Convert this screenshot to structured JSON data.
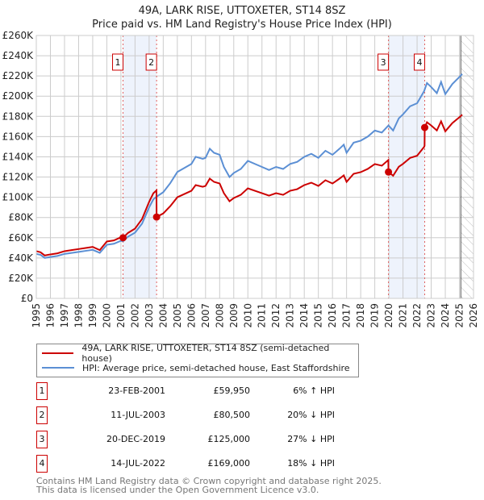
{
  "title": "49A, LARK RISE, UTTOXETER, ST14 8SZ",
  "subtitle": "Price paid vs. HM Land Registry's House Price Index (HPI)",
  "legend": {
    "property": "49A, LARK RISE, UTTOXETER, ST14 8SZ (semi-detached house)",
    "hpi": "HPI: Average price, semi-detached house, East Staffordshire"
  },
  "transactions": [
    {
      "num": "1",
      "date": "23-FEB-2001",
      "price": "£59,950",
      "hpi": "6% ↑ HPI"
    },
    {
      "num": "2",
      "date": "11-JUL-2003",
      "price": "£80,500",
      "hpi": "20% ↓ HPI"
    },
    {
      "num": "3",
      "date": "20-DEC-2019",
      "price": "£125,000",
      "hpi": "27% ↓ HPI"
    },
    {
      "num": "4",
      "date": "14-JUL-2022",
      "price": "£169,000",
      "hpi": "18% ↓ HPI"
    }
  ],
  "footer": [
    "Contains HM Land Registry data © Crown copyright and database right 2025.",
    "This data is licensed under the Open Government Licence v3.0."
  ],
  "colors": {
    "property": "#cc0000",
    "hpi": "#5b8fd4",
    "band": "#eef3fc"
  },
  "chart_data": {
    "type": "line",
    "xlim": [
      1995,
      2026
    ],
    "ylim": [
      0,
      260000
    ],
    "yticks": [
      "£0",
      "£20K",
      "£40K",
      "£60K",
      "£80K",
      "£100K",
      "£120K",
      "£140K",
      "£160K",
      "£180K",
      "£200K",
      "£220K",
      "£240K",
      "£260K"
    ],
    "xticks": [
      "1995",
      "1996",
      "1997",
      "1998",
      "1999",
      "2000",
      "2001",
      "2002",
      "2003",
      "2004",
      "2005",
      "2006",
      "2007",
      "2008",
      "2009",
      "2010",
      "2011",
      "2012",
      "2013",
      "2014",
      "2015",
      "2016",
      "2017",
      "2018",
      "2019",
      "2020",
      "2021",
      "2022",
      "2023",
      "2024",
      "2025",
      "2026"
    ],
    "forecast_from": 2025.1,
    "sales": [
      {
        "label": "1",
        "x": 2001.15,
        "y": 59950
      },
      {
        "label": "2",
        "x": 2003.53,
        "y": 80500
      },
      {
        "label": "3",
        "x": 2019.97,
        "y": 125000
      },
      {
        "label": "4",
        "x": 2022.54,
        "y": 169000
      }
    ],
    "hpi_series": {
      "name": "HPI: Average price, semi-detached house, East Staffordshire",
      "points": [
        [
          1995,
          44000
        ],
        [
          1995.3,
          43000
        ],
        [
          1995.6,
          40000
        ],
        [
          1996,
          41000
        ],
        [
          1996.5,
          42000
        ],
        [
          1997,
          44000
        ],
        [
          1997.5,
          45000
        ],
        [
          1998,
          46000
        ],
        [
          1998.5,
          47000
        ],
        [
          1999,
          48000
        ],
        [
          1999.5,
          45000
        ],
        [
          2000,
          53000
        ],
        [
          2000.5,
          54000
        ],
        [
          2001,
          57000
        ],
        [
          2001.15,
          56500
        ],
        [
          2001.5,
          61000
        ],
        [
          2002,
          65000
        ],
        [
          2002.5,
          74000
        ],
        [
          2003,
          90000
        ],
        [
          2003.3,
          98000
        ],
        [
          2003.53,
          100600
        ],
        [
          2004,
          105000
        ],
        [
          2004.5,
          114000
        ],
        [
          2005,
          125000
        ],
        [
          2005.5,
          129000
        ],
        [
          2006,
          133000
        ],
        [
          2006.3,
          140000
        ],
        [
          2006.8,
          138000
        ],
        [
          2007,
          139000
        ],
        [
          2007.3,
          148000
        ],
        [
          2007.6,
          144000
        ],
        [
          2008,
          142000
        ],
        [
          2008.3,
          130000
        ],
        [
          2008.7,
          120000
        ],
        [
          2009,
          124000
        ],
        [
          2009.5,
          128000
        ],
        [
          2010,
          136000
        ],
        [
          2010.5,
          133000
        ],
        [
          2011,
          130000
        ],
        [
          2011.5,
          127000
        ],
        [
          2012,
          130000
        ],
        [
          2012.5,
          128000
        ],
        [
          2013,
          133000
        ],
        [
          2013.5,
          135000
        ],
        [
          2014,
          140000
        ],
        [
          2014.5,
          143000
        ],
        [
          2015,
          139000
        ],
        [
          2015.5,
          146000
        ],
        [
          2016,
          142000
        ],
        [
          2016.5,
          148000
        ],
        [
          2016.8,
          152000
        ],
        [
          2017,
          144000
        ],
        [
          2017.5,
          154000
        ],
        [
          2018,
          156000
        ],
        [
          2018.5,
          160000
        ],
        [
          2019,
          166000
        ],
        [
          2019.5,
          164000
        ],
        [
          2019.97,
          171000
        ],
        [
          2020.3,
          166000
        ],
        [
          2020.7,
          178000
        ],
        [
          2021,
          182000
        ],
        [
          2021.5,
          190000
        ],
        [
          2022,
          193000
        ],
        [
          2022.5,
          205000
        ],
        [
          2022.7,
          213000
        ],
        [
          2023,
          209000
        ],
        [
          2023.4,
          203000
        ],
        [
          2023.7,
          214000
        ],
        [
          2024,
          202000
        ],
        [
          2024.5,
          212000
        ],
        [
          2025,
          219000
        ],
        [
          2025.2,
          222000
        ]
      ]
    },
    "property_series": {
      "name": "49A, LARK RISE, UTTOXETER, ST14 8SZ (semi-detached house)",
      "note": "HPI-indexed from each sale"
    }
  }
}
